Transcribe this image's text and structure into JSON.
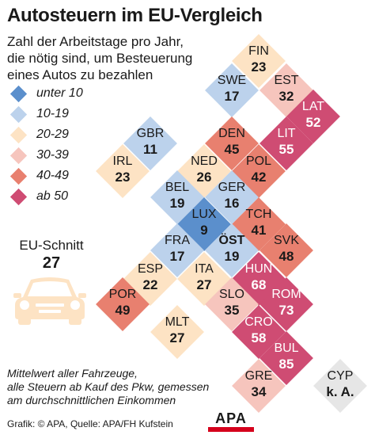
{
  "title": "Autosteuern im EU-Vergleich",
  "subtitle": [
    "Zahl der Arbeitstage pro Jahr,",
    "die nötig sind, um Besteuerung",
    "eines Autos zu bezahlen"
  ],
  "legend": [
    {
      "label": "unter 10",
      "color": "#5b8fcc"
    },
    {
      "label": "10-19",
      "color": "#bcd2ec"
    },
    {
      "label": "20-29",
      "color": "#fde3c4"
    },
    {
      "label": "30-39",
      "color": "#f6c5bd"
    },
    {
      "label": "40-49",
      "color": "#e8806f"
    },
    {
      "label": "ab 50",
      "color": "#cf4c73"
    }
  ],
  "average": {
    "label": "EU-Schnitt",
    "value": "27",
    "icon": "car-icon",
    "color": "#fde3c4"
  },
  "countries": [
    {
      "code": "FIN",
      "value": "23",
      "color": "#fde3c4",
      "dark": false
    },
    {
      "code": "SWE",
      "value": "17",
      "color": "#bcd2ec",
      "dark": false
    },
    {
      "code": "EST",
      "value": "32",
      "color": "#f6c5bd",
      "dark": false
    },
    {
      "code": "LAT",
      "value": "52",
      "color": "#cf4c73",
      "dark": true
    },
    {
      "code": "GBR",
      "value": "11",
      "color": "#bcd2ec",
      "dark": false
    },
    {
      "code": "DEN",
      "value": "45",
      "color": "#e8806f",
      "dark": false
    },
    {
      "code": "LIT",
      "value": "55",
      "color": "#cf4c73",
      "dark": true
    },
    {
      "code": "IRL",
      "value": "23",
      "color": "#fde3c4",
      "dark": false
    },
    {
      "code": "NED",
      "value": "26",
      "color": "#fde3c4",
      "dark": false
    },
    {
      "code": "POL",
      "value": "42",
      "color": "#e8806f",
      "dark": false
    },
    {
      "code": "BEL",
      "value": "19",
      "color": "#bcd2ec",
      "dark": false
    },
    {
      "code": "GER",
      "value": "16",
      "color": "#bcd2ec",
      "dark": false
    },
    {
      "code": "LUX",
      "value": "9",
      "color": "#5b8fcc",
      "dark": false
    },
    {
      "code": "TCH",
      "value": "41",
      "color": "#e8806f",
      "dark": false
    },
    {
      "code": "FRA",
      "value": "17",
      "color": "#bcd2ec",
      "dark": false
    },
    {
      "code": "ÖST",
      "value": "19",
      "color": "#bcd2ec",
      "dark": false,
      "bold": true
    },
    {
      "code": "SVK",
      "value": "48",
      "color": "#e8806f",
      "dark": false
    },
    {
      "code": "ESP",
      "value": "22",
      "color": "#fde3c4",
      "dark": false
    },
    {
      "code": "ITA",
      "value": "27",
      "color": "#fde3c4",
      "dark": false
    },
    {
      "code": "HUN",
      "value": "68",
      "color": "#cf4c73",
      "dark": true
    },
    {
      "code": "POR",
      "value": "49",
      "color": "#e8806f",
      "dark": false
    },
    {
      "code": "SLO",
      "value": "35",
      "color": "#f6c5bd",
      "dark": false
    },
    {
      "code": "ROM",
      "value": "73",
      "color": "#cf4c73",
      "dark": true
    },
    {
      "code": "MLT",
      "value": "27",
      "color": "#fde3c4",
      "dark": false
    },
    {
      "code": "CRO",
      "value": "58",
      "color": "#cf4c73",
      "dark": true
    },
    {
      "code": "BUL",
      "value": "85",
      "color": "#cf4c73",
      "dark": true
    },
    {
      "code": "GRE",
      "value": "34",
      "color": "#f6c5bd",
      "dark": false
    },
    {
      "code": "CYP",
      "value": "k. A.",
      "color": "#e6e6e6",
      "dark": false
    }
  ],
  "footnote": [
    "Mittelwert aller Fahrzeuge,",
    "alle Steuern ab Kauf des Pkw, gemessen",
    "am durchschnittlichen Einkommen"
  ],
  "source": "Grafik: © APA, Quelle: APA/FH Kufstein",
  "logo": "APA"
}
